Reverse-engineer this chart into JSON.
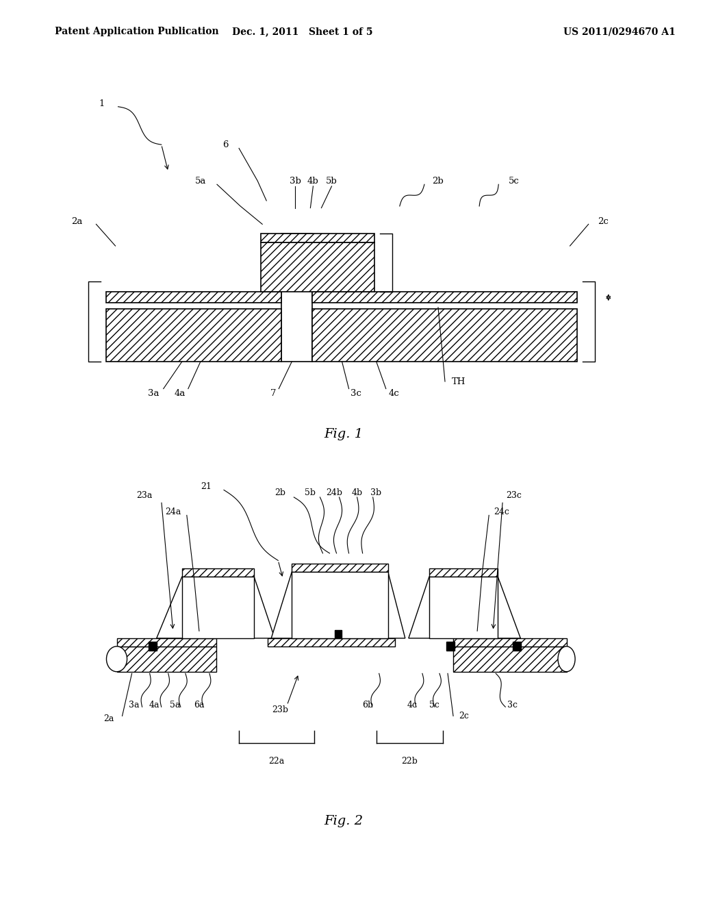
{
  "header_left": "Patent Application Publication",
  "header_mid": "Dec. 1, 2011   Sheet 1 of 5",
  "header_right": "US 2011/0294670 A1",
  "fig1_caption": "Fig. 1",
  "fig2_caption": "Fig. 2",
  "bg_color": "#ffffff",
  "line_color": "#000000"
}
